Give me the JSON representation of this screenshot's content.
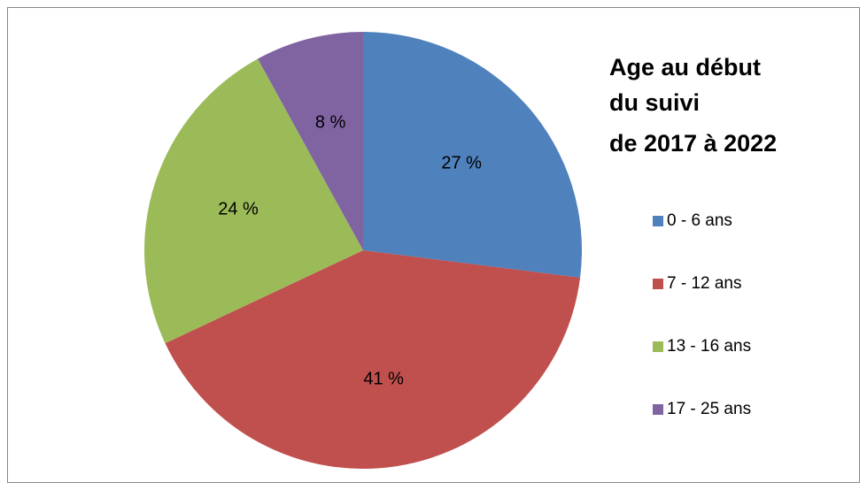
{
  "chart_data": {
    "type": "pie",
    "title": [
      "Age au début",
      "du suivi",
      "de 2017 à 2022"
    ],
    "categories": [
      "0 - 6 ans",
      "7 - 12 ans",
      "13 - 16 ans",
      "17 - 25 ans"
    ],
    "values": [
      27,
      41,
      24,
      8
    ],
    "value_labels": [
      "27 %",
      "41 %",
      "24 %",
      "8 %"
    ],
    "colors": [
      "#4f81bd",
      "#c0504d",
      "#9bbb59",
      "#8064a2"
    ],
    "legend": "right"
  }
}
